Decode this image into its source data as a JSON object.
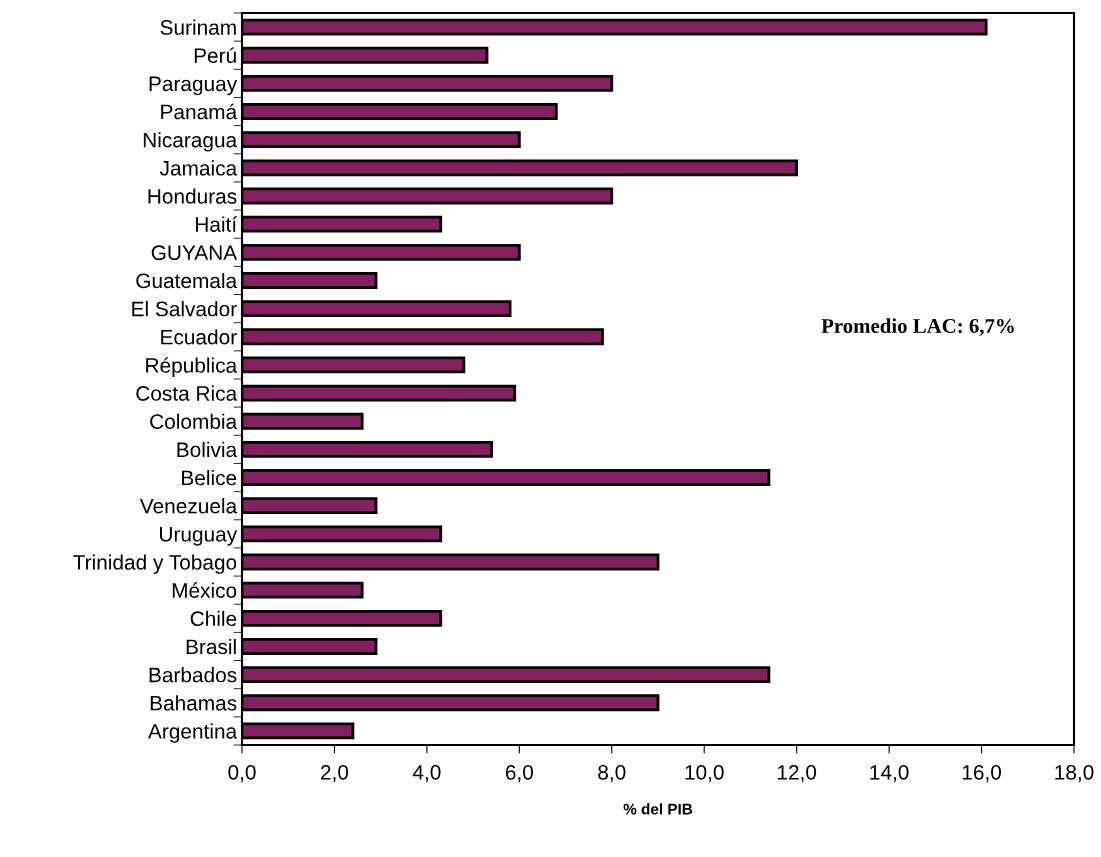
{
  "chart_data": {
    "type": "bar",
    "orientation": "horizontal",
    "xlabel": "% del PIB",
    "categories": [
      "Surinam",
      "Perú",
      "Paraguay",
      "Panamá",
      "Nicaragua",
      "Jamaica",
      "Honduras",
      "Haití",
      "GUYANA",
      "Guatemala",
      "El Salvador",
      "Ecuador",
      "Républica",
      "Costa Rica",
      "Colombia",
      "Bolivia",
      "Belice",
      "Venezuela",
      "Uruguay",
      "Trinidad y Tobago",
      "México",
      "Chile",
      "Brasil",
      "Barbados",
      "Bahamas",
      "Argentina"
    ],
    "values": [
      16.1,
      5.3,
      8.0,
      6.8,
      6.0,
      12.0,
      8.0,
      4.3,
      6.0,
      2.9,
      5.8,
      7.8,
      4.8,
      5.9,
      2.6,
      5.4,
      11.4,
      2.9,
      4.3,
      9.0,
      2.6,
      4.3,
      2.9,
      11.4,
      9.0,
      2.4
    ],
    "color": "#842060",
    "xlim": [
      0,
      18
    ],
    "xticks": [
      {
        "value": 0,
        "label": "0,0"
      },
      {
        "value": 2,
        "label": "2,0"
      },
      {
        "value": 4,
        "label": "4,0"
      },
      {
        "value": 6,
        "label": "6,0"
      },
      {
        "value": 8,
        "label": "8,0"
      },
      {
        "value": 10,
        "label": "10,0"
      },
      {
        "value": 12,
        "label": "12,0"
      },
      {
        "value": 14,
        "label": "14,0"
      },
      {
        "value": 16,
        "label": "16,0"
      },
      {
        "value": 18,
        "label": "18,0"
      }
    ],
    "grid": false,
    "annotations": [
      "Promedio LAC: 6,7%"
    ]
  }
}
